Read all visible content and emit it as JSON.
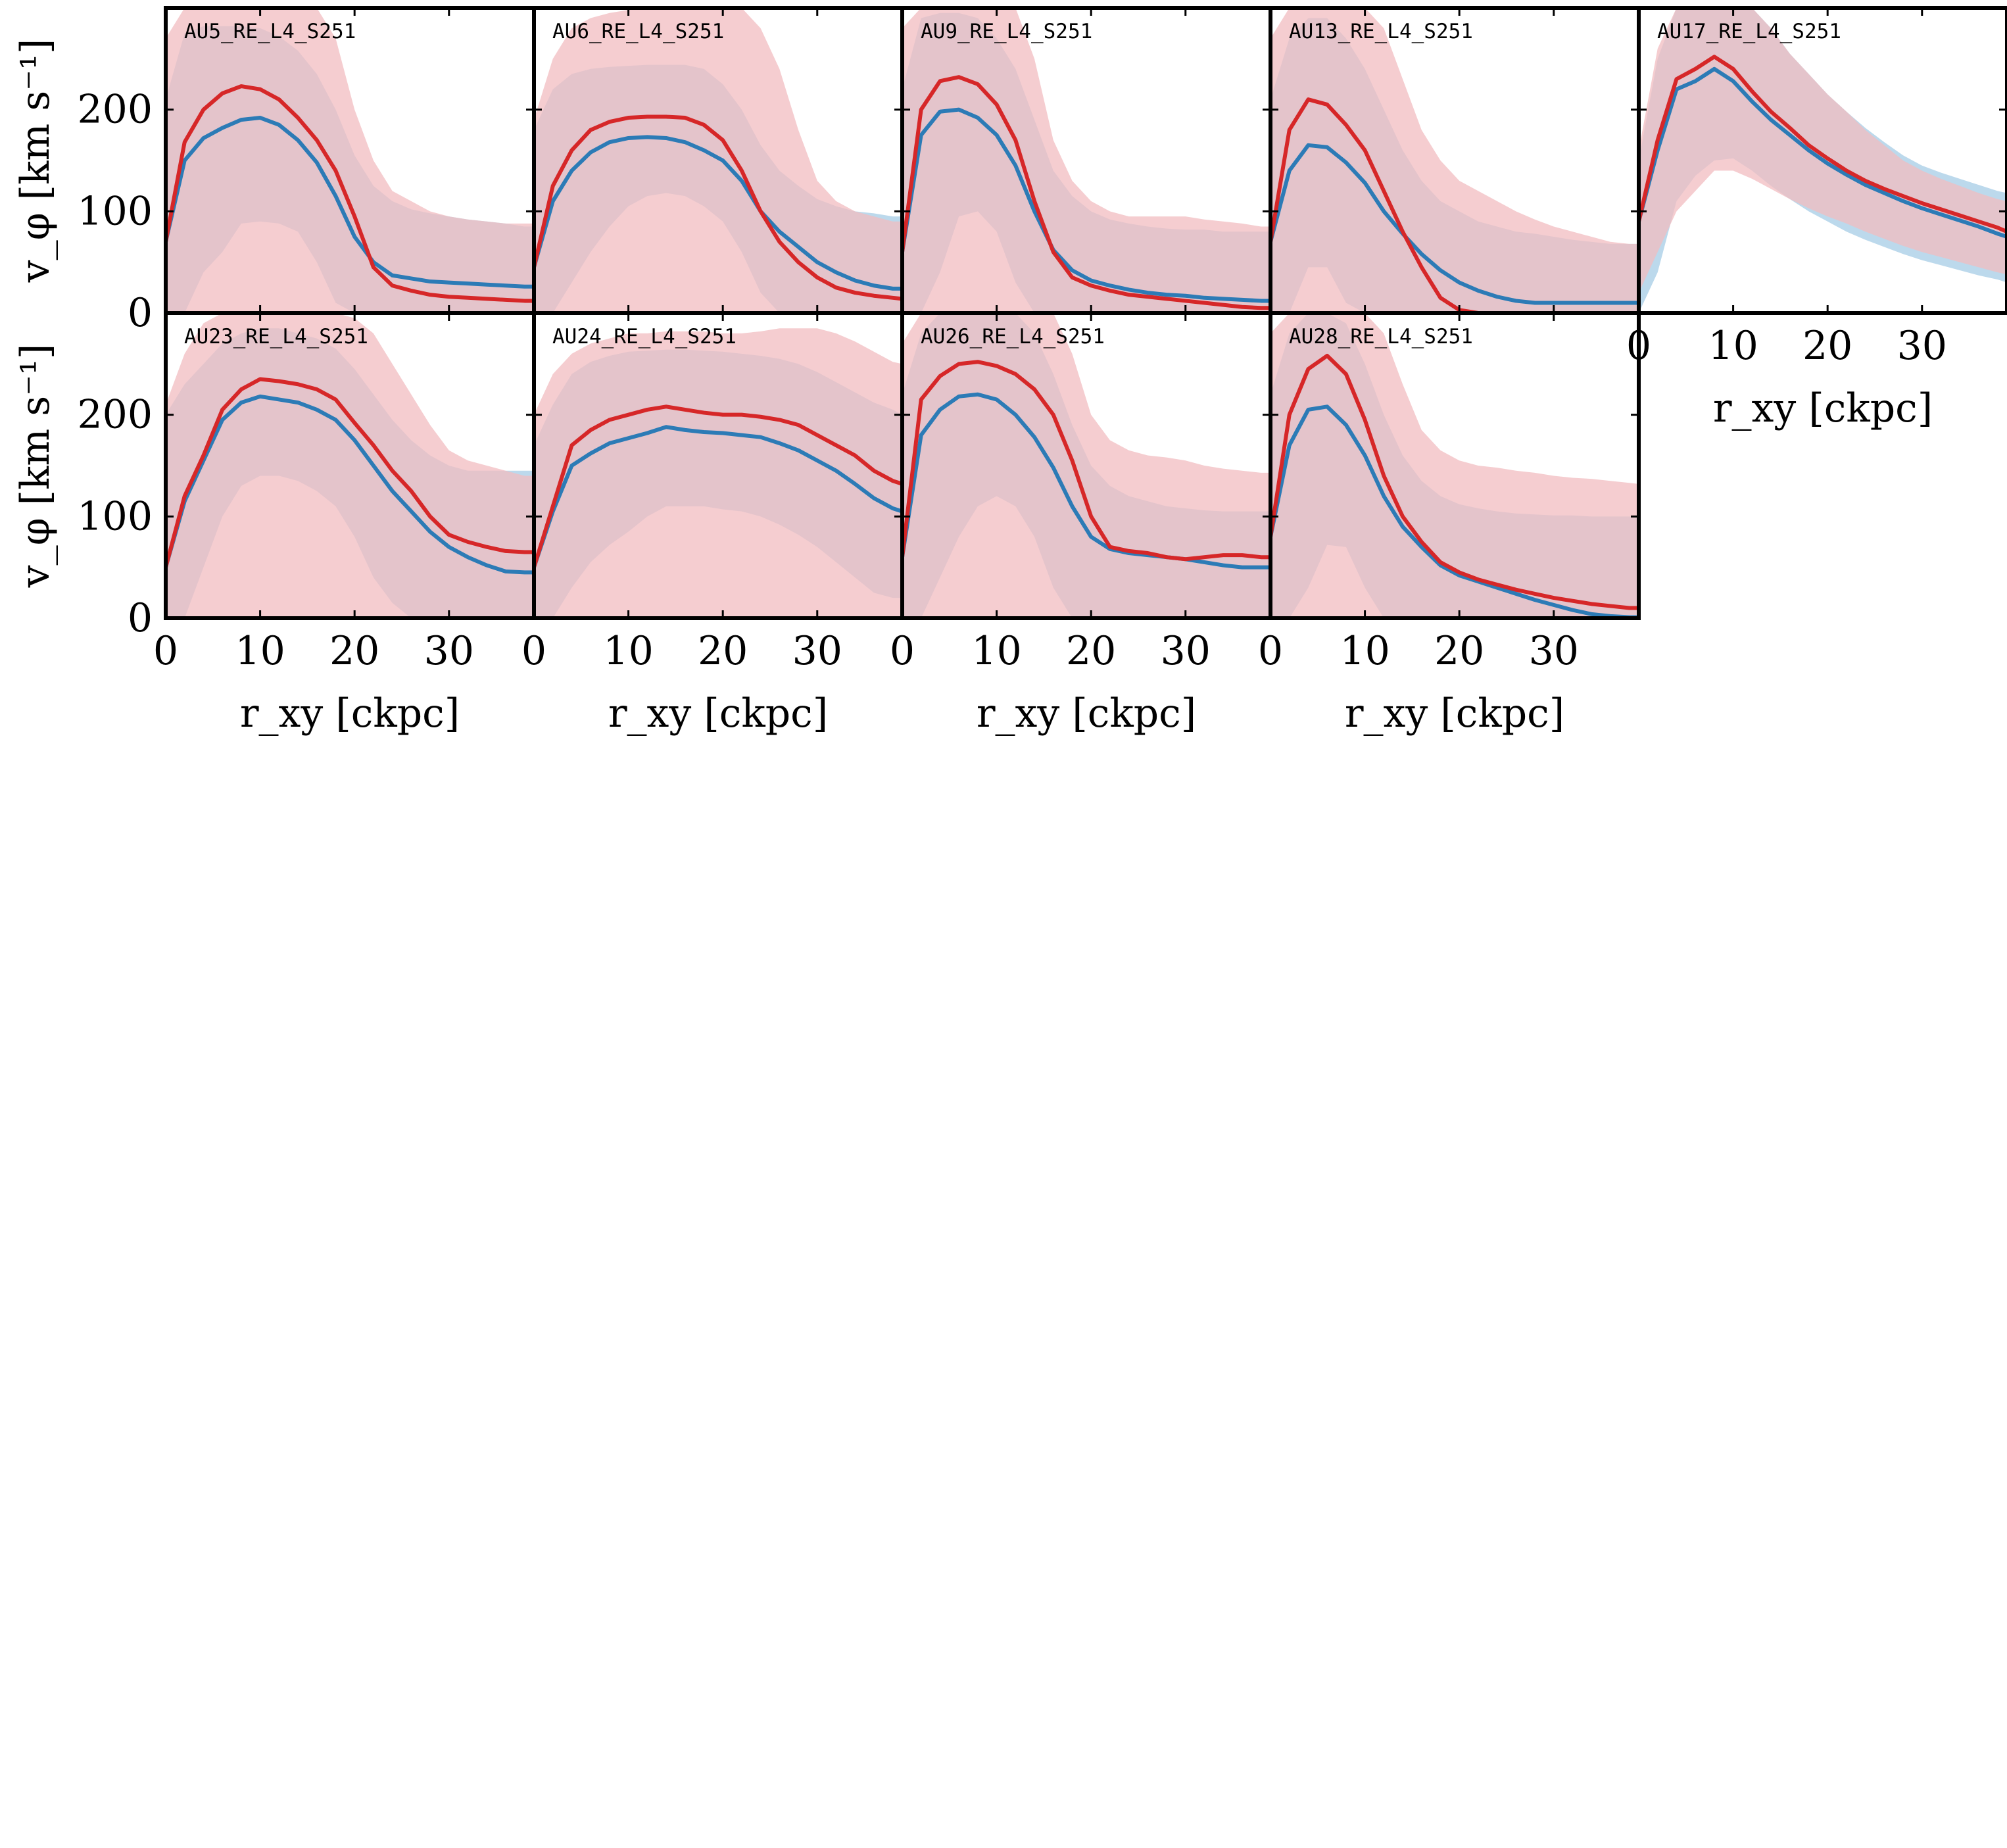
{
  "chart_data": {
    "type": "line",
    "layout": {
      "columns": 5,
      "rows": 2
    },
    "x_label": "r_xy [ckpc]",
    "y_label": "v_φ [km s⁻¹]",
    "x_ticks": [
      0,
      10,
      20,
      30
    ],
    "y_ticks": [
      0,
      100,
      200
    ],
    "xlim": [
      0,
      39
    ],
    "ylim": [
      0,
      300
    ],
    "colors": {
      "red_line": "#d62728",
      "red_band": "#f2bcc0",
      "blue_line": "#2c7bb6",
      "blue_band": "#bcd9ec",
      "overlap": "#c3a5b3"
    },
    "x": [
      0,
      2,
      4,
      6,
      8,
      10,
      12,
      14,
      16,
      18,
      20,
      22,
      24,
      26,
      28,
      30,
      32,
      34,
      36,
      38,
      39
    ],
    "panels": [
      {
        "title": "AU5_RE_L4_S251",
        "red_line": [
          70,
          168,
          200,
          216,
          223,
          220,
          210,
          192,
          170,
          140,
          95,
          45,
          27,
          22,
          18,
          16,
          15,
          14,
          13,
          12,
          12
        ],
        "blue_line": [
          70,
          150,
          172,
          182,
          190,
          192,
          185,
          170,
          148,
          115,
          75,
          50,
          37,
          34,
          31,
          30,
          29,
          28,
          27,
          26,
          26
        ],
        "red_lo": [
          0,
          0,
          0,
          0,
          0,
          0,
          0,
          0,
          0,
          0,
          0,
          0,
          0,
          0,
          0,
          0,
          0,
          0,
          0,
          0,
          0
        ],
        "red_hi": [
          270,
          300,
          300,
          300,
          300,
          300,
          300,
          300,
          300,
          270,
          200,
          150,
          120,
          110,
          100,
          95,
          92,
          90,
          88,
          88,
          88
        ],
        "blue_lo": [
          0,
          0,
          40,
          60,
          88,
          90,
          88,
          80,
          50,
          10,
          0,
          0,
          0,
          0,
          0,
          0,
          0,
          0,
          0,
          0,
          0
        ],
        "blue_hi": [
          210,
          275,
          282,
          282,
          282,
          280,
          272,
          258,
          235,
          200,
          155,
          125,
          110,
          102,
          98,
          95,
          92,
          90,
          88,
          85,
          85
        ]
      },
      {
        "title": "AU6_RE_L4_S251",
        "red_line": [
          45,
          125,
          160,
          180,
          188,
          192,
          193,
          193,
          192,
          185,
          170,
          140,
          100,
          70,
          50,
          35,
          25,
          20,
          17,
          15,
          14
        ],
        "blue_line": [
          45,
          110,
          140,
          158,
          168,
          172,
          173,
          172,
          168,
          160,
          150,
          130,
          100,
          80,
          65,
          50,
          40,
          32,
          27,
          24,
          24
        ],
        "red_lo": [
          0,
          0,
          0,
          0,
          0,
          0,
          0,
          0,
          0,
          0,
          0,
          0,
          0,
          0,
          0,
          0,
          0,
          0,
          0,
          0,
          0
        ],
        "red_hi": [
          190,
          250,
          280,
          290,
          295,
          298,
          300,
          300,
          300,
          300,
          300,
          300,
          280,
          240,
          180,
          130,
          110,
          100,
          95,
          90,
          90
        ],
        "blue_lo": [
          0,
          0,
          30,
          60,
          85,
          105,
          115,
          118,
          115,
          105,
          90,
          60,
          20,
          0,
          0,
          0,
          0,
          0,
          0,
          0,
          0
        ],
        "blue_hi": [
          180,
          220,
          235,
          240,
          242,
          243,
          244,
          244,
          244,
          240,
          225,
          200,
          165,
          140,
          125,
          112,
          105,
          100,
          98,
          95,
          95
        ]
      },
      {
        "title": "AU9_RE_L4_S251",
        "red_line": [
          60,
          200,
          228,
          232,
          225,
          205,
          170,
          110,
          60,
          35,
          27,
          22,
          18,
          16,
          14,
          12,
          10,
          8,
          6,
          5,
          5
        ],
        "blue_line": [
          60,
          175,
          198,
          200,
          192,
          175,
          145,
          100,
          62,
          42,
          32,
          27,
          23,
          20,
          18,
          17,
          15,
          14,
          13,
          12,
          12
        ],
        "red_lo": [
          0,
          0,
          0,
          0,
          0,
          0,
          0,
          0,
          0,
          0,
          0,
          0,
          0,
          0,
          0,
          0,
          0,
          0,
          0,
          0,
          0
        ],
        "red_hi": [
          280,
          300,
          300,
          300,
          300,
          300,
          300,
          250,
          170,
          130,
          110,
          100,
          95,
          95,
          95,
          95,
          92,
          90,
          88,
          85,
          85
        ],
        "blue_lo": [
          0,
          0,
          40,
          95,
          100,
          80,
          30,
          0,
          0,
          0,
          0,
          0,
          0,
          0,
          0,
          0,
          0,
          0,
          0,
          0,
          0
        ],
        "blue_hi": [
          220,
          290,
          295,
          295,
          290,
          270,
          240,
          190,
          140,
          115,
          100,
          92,
          88,
          85,
          83,
          82,
          82,
          80,
          80,
          80,
          80
        ]
      },
      {
        "title": "AU13_RE_L4_S251",
        "red_line": [
          70,
          180,
          210,
          205,
          185,
          160,
          120,
          80,
          45,
          15,
          3,
          0,
          0,
          0,
          0,
          0,
          0,
          0,
          0,
          0,
          0
        ],
        "blue_line": [
          70,
          140,
          165,
          163,
          148,
          128,
          100,
          78,
          58,
          42,
          30,
          22,
          16,
          12,
          10,
          10,
          10,
          10,
          10,
          10,
          10
        ],
        "red_lo": [
          0,
          0,
          0,
          0,
          0,
          0,
          0,
          0,
          0,
          0,
          0,
          0,
          0,
          0,
          0,
          0,
          0,
          0,
          0,
          0,
          0
        ],
        "red_hi": [
          270,
          300,
          300,
          300,
          300,
          300,
          280,
          230,
          180,
          150,
          130,
          120,
          110,
          100,
          92,
          85,
          80,
          75,
          70,
          68,
          68
        ],
        "blue_lo": [
          0,
          0,
          45,
          45,
          10,
          0,
          0,
          0,
          0,
          0,
          0,
          0,
          0,
          0,
          0,
          0,
          0,
          0,
          0,
          0,
          0
        ],
        "blue_hi": [
          210,
          270,
          290,
          290,
          270,
          240,
          200,
          160,
          130,
          110,
          100,
          90,
          85,
          80,
          78,
          75,
          72,
          70,
          68,
          68,
          68
        ]
      },
      {
        "title": "AU17_RE_L4_S251",
        "red_line": [
          90,
          170,
          230,
          240,
          252,
          240,
          218,
          198,
          182,
          165,
          152,
          140,
          130,
          122,
          115,
          108,
          102,
          96,
          90,
          84,
          80
        ],
        "blue_line": [
          90,
          160,
          220,
          228,
          240,
          228,
          208,
          190,
          175,
          160,
          147,
          136,
          126,
          118,
          110,
          103,
          97,
          91,
          85,
          78,
          75
        ],
        "red_lo": [
          20,
          60,
          100,
          120,
          140,
          140,
          132,
          122,
          112,
          103,
          95,
          88,
          80,
          73,
          66,
          60,
          55,
          50,
          45,
          40,
          38
        ],
        "red_hi": [
          160,
          260,
          300,
          300,
          300,
          300,
          300,
          280,
          255,
          235,
          215,
          198,
          180,
          165,
          150,
          140,
          132,
          125,
          118,
          112,
          110
        ],
        "blue_lo": [
          0,
          40,
          110,
          135,
          150,
          152,
          140,
          125,
          112,
          100,
          90,
          80,
          72,
          65,
          58,
          52,
          47,
          42,
          37,
          33,
          30
        ],
        "blue_hi": [
          150,
          250,
          300,
          300,
          300,
          300,
          300,
          280,
          255,
          235,
          215,
          198,
          182,
          168,
          155,
          145,
          138,
          132,
          126,
          120,
          118
        ]
      },
      {
        "title": "AU23_RE_L4_S251",
        "red_line": [
          50,
          120,
          160,
          205,
          225,
          235,
          233,
          230,
          225,
          215,
          192,
          170,
          145,
          125,
          100,
          82,
          75,
          70,
          66,
          65,
          65
        ],
        "blue_line": [
          50,
          115,
          155,
          195,
          212,
          218,
          215,
          212,
          205,
          195,
          175,
          150,
          125,
          105,
          85,
          70,
          60,
          52,
          46,
          45,
          45
        ],
        "red_lo": [
          0,
          0,
          0,
          0,
          0,
          0,
          0,
          0,
          0,
          0,
          0,
          0,
          0,
          0,
          0,
          0,
          0,
          0,
          0,
          0,
          0
        ],
        "red_hi": [
          210,
          260,
          290,
          300,
          300,
          300,
          300,
          300,
          300,
          300,
          295,
          280,
          250,
          220,
          190,
          165,
          155,
          150,
          145,
          140,
          140
        ],
        "blue_lo": [
          0,
          0,
          50,
          100,
          130,
          140,
          140,
          135,
          125,
          110,
          80,
          40,
          15,
          0,
          0,
          0,
          0,
          0,
          0,
          0,
          0
        ],
        "blue_hi": [
          200,
          230,
          250,
          270,
          280,
          285,
          285,
          280,
          275,
          265,
          245,
          220,
          195,
          175,
          160,
          150,
          145,
          145,
          145,
          145,
          145
        ]
      },
      {
        "title": "AU24_RE_L4_S251",
        "red_line": [
          50,
          110,
          170,
          185,
          195,
          200,
          205,
          208,
          205,
          202,
          200,
          200,
          198,
          195,
          190,
          180,
          170,
          160,
          145,
          135,
          132
        ],
        "blue_line": [
          50,
          105,
          150,
          162,
          172,
          177,
          182,
          188,
          185,
          183,
          182,
          180,
          178,
          172,
          165,
          155,
          145,
          132,
          118,
          108,
          105
        ],
        "red_lo": [
          0,
          0,
          0,
          0,
          0,
          0,
          0,
          0,
          0,
          0,
          0,
          0,
          0,
          0,
          0,
          0,
          0,
          0,
          0,
          0,
          0
        ],
        "red_hi": [
          200,
          240,
          260,
          270,
          275,
          280,
          280,
          282,
          282,
          282,
          280,
          280,
          282,
          285,
          285,
          285,
          280,
          272,
          262,
          252,
          250
        ],
        "blue_lo": [
          0,
          0,
          30,
          55,
          72,
          85,
          100,
          110,
          110,
          110,
          107,
          105,
          100,
          92,
          82,
          70,
          55,
          40,
          25,
          20,
          20
        ],
        "blue_hi": [
          170,
          210,
          240,
          252,
          258,
          262,
          263,
          264,
          264,
          263,
          262,
          260,
          258,
          255,
          250,
          242,
          232,
          222,
          212,
          205,
          200
        ]
      },
      {
        "title": "AU26_RE_L4_S251",
        "red_line": [
          60,
          215,
          238,
          250,
          252,
          248,
          240,
          225,
          200,
          155,
          100,
          70,
          66,
          64,
          60,
          58,
          60,
          62,
          62,
          60,
          60
        ],
        "blue_line": [
          60,
          180,
          205,
          218,
          220,
          215,
          200,
          178,
          148,
          110,
          80,
          68,
          64,
          62,
          60,
          58,
          55,
          52,
          50,
          50,
          50
        ],
        "red_lo": [
          0,
          0,
          0,
          0,
          0,
          0,
          0,
          0,
          0,
          0,
          0,
          0,
          0,
          0,
          0,
          0,
          0,
          0,
          0,
          0,
          0
        ],
        "red_hi": [
          270,
          300,
          300,
          300,
          300,
          300,
          300,
          300,
          300,
          260,
          200,
          175,
          165,
          160,
          158,
          155,
          150,
          147,
          145,
          143,
          143
        ],
        "blue_lo": [
          0,
          0,
          40,
          80,
          110,
          120,
          110,
          80,
          30,
          0,
          0,
          0,
          0,
          0,
          0,
          0,
          0,
          0,
          0,
          0,
          0
        ],
        "blue_hi": [
          220,
          280,
          300,
          300,
          300,
          300,
          300,
          280,
          240,
          190,
          150,
          130,
          120,
          115,
          110,
          108,
          106,
          105,
          105,
          105,
          105
        ]
      },
      {
        "title": "AU28_RE_L4_S251",
        "red_line": [
          80,
          200,
          245,
          258,
          240,
          195,
          140,
          100,
          75,
          55,
          45,
          38,
          33,
          28,
          24,
          20,
          17,
          14,
          12,
          10,
          10
        ],
        "blue_line": [
          80,
          170,
          205,
          208,
          190,
          160,
          120,
          90,
          70,
          52,
          42,
          36,
          30,
          24,
          18,
          13,
          8,
          4,
          2,
          1,
          1
        ],
        "red_lo": [
          0,
          0,
          0,
          0,
          0,
          0,
          0,
          0,
          0,
          0,
          0,
          0,
          0,
          0,
          0,
          0,
          0,
          0,
          0,
          0,
          0
        ],
        "red_hi": [
          280,
          300,
          300,
          300,
          300,
          300,
          280,
          230,
          185,
          165,
          155,
          150,
          148,
          145,
          143,
          140,
          138,
          137,
          135,
          133,
          132
        ],
        "blue_lo": [
          0,
          0,
          30,
          72,
          70,
          30,
          0,
          0,
          0,
          0,
          0,
          0,
          0,
          0,
          0,
          0,
          0,
          0,
          0,
          0,
          0
        ],
        "blue_hi": [
          220,
          280,
          300,
          300,
          290,
          250,
          200,
          160,
          135,
          120,
          112,
          108,
          105,
          103,
          102,
          101,
          101,
          100,
          100,
          100,
          100
        ]
      }
    ]
  }
}
